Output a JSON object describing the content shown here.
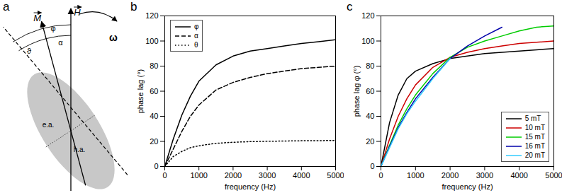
{
  "diagram": {
    "panel": "a",
    "field": "H",
    "magnetization": "M",
    "rotation": "ω",
    "angles": {
      "phi": "φ",
      "theta": "ϑ",
      "alpha": "α"
    },
    "easy_axis": "e.a.",
    "hard_axis": "h.a."
  },
  "chart_data": [
    {
      "type": "line",
      "panel": "b",
      "x_label": "frequency (Hz)",
      "y_label": "phase lag (°)",
      "x": [
        0,
        250,
        500,
        750,
        1000,
        1500,
        2000,
        2500,
        3000,
        3500,
        4000,
        4500,
        5000
      ],
      "series": [
        {
          "name": "φ",
          "color": "#000000",
          "line_style": "solid",
          "values": [
            0,
            22,
            41,
            56,
            68,
            81,
            88,
            92,
            94,
            96,
            98,
            99.5,
            101
          ]
        },
        {
          "name": "α",
          "color": "#000000",
          "line_style": "dashed",
          "values": [
            0,
            14,
            28,
            40,
            49,
            61,
            67,
            71,
            74,
            76,
            78,
            79,
            80
          ]
        },
        {
          "name": "θ",
          "color": "#000000",
          "line_style": "dotted",
          "values": [
            0,
            8,
            12,
            15,
            16.5,
            18.5,
            19.3,
            19.8,
            20.1,
            20.3,
            20.5,
            20.6,
            20.7
          ]
        }
      ],
      "xlim": [
        0,
        5000
      ],
      "xticks": [
        0,
        1000,
        2000,
        3000,
        4000,
        5000
      ],
      "ylim": [
        0,
        120
      ],
      "yticks": [
        0,
        20,
        40,
        60,
        80,
        100,
        120
      ],
      "legend": "top-left",
      "grid": false
    },
    {
      "type": "line",
      "panel": "c",
      "x_label": "frequency (Hz)",
      "y_label": "phase lag φ (°)",
      "x": [
        0,
        250,
        500,
        750,
        1000,
        1500,
        2000,
        2500,
        3000,
        3500,
        4000,
        4500,
        5000
      ],
      "series": [
        {
          "name": "5 mT",
          "color": "#000000",
          "line_style": "solid",
          "values": [
            0,
            35,
            57,
            70,
            76,
            82,
            86,
            88,
            90,
            91,
            92,
            93,
            94
          ]
        },
        {
          "name": "10 mT",
          "color": "#cc0000",
          "line_style": "solid",
          "values": [
            0,
            22,
            40,
            54,
            65,
            79,
            87,
            91,
            94,
            96,
            98,
            99,
            100
          ]
        },
        {
          "name": "15 mT",
          "color": "#00cc00",
          "line_style": "solid",
          "values": [
            0,
            17,
            33,
            46,
            57,
            74,
            87,
            95,
            100,
            104,
            108,
            111,
            112
          ]
        },
        {
          "name": "16 mT",
          "color": "#0000aa",
          "line_style": "solid",
          "values": [
            0,
            16,
            31,
            43,
            54,
            71,
            86,
            96,
            104,
            111,
            null,
            null,
            null
          ]
        },
        {
          "name": "20 mT",
          "color": "#33ccff",
          "line_style": "solid",
          "values": [
            0,
            15,
            30,
            42,
            52,
            70,
            86,
            null,
            null,
            null,
            null,
            null,
            null
          ]
        }
      ],
      "xlim": [
        0,
        5000
      ],
      "xticks": [
        0,
        1000,
        2000,
        3000,
        4000,
        5000
      ],
      "ylim": [
        0,
        120
      ],
      "yticks": [
        0,
        20,
        40,
        60,
        80,
        100,
        120
      ],
      "legend": "bottom-right",
      "grid": false
    }
  ]
}
